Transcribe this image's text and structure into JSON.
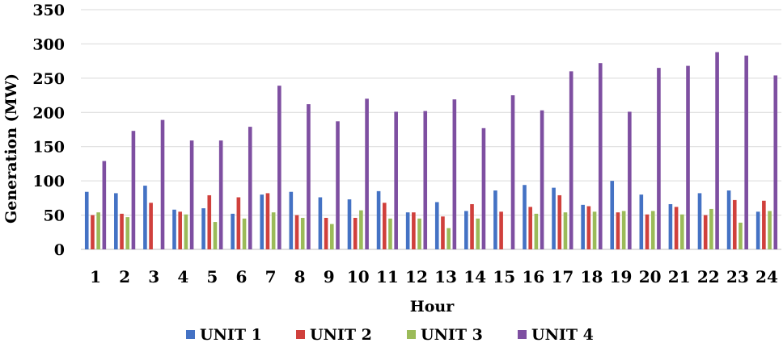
{
  "chart_data": {
    "type": "bar",
    "xlabel": "Hour",
    "ylabel": "Generation (MW)",
    "ylim": [
      0,
      350
    ],
    "yticks": [
      "0",
      "50",
      "100",
      "150",
      "200",
      "250",
      "300",
      "350"
    ],
    "grid": true,
    "legend_position": "bottom",
    "categories": [
      "1",
      "2",
      "3",
      "4",
      "5",
      "6",
      "7",
      "8",
      "9",
      "10",
      "11",
      "12",
      "13",
      "14",
      "15",
      "16",
      "17",
      "18",
      "19",
      "20",
      "21",
      "22",
      "23",
      "24"
    ],
    "series": [
      {
        "name": "UNIT 1",
        "color": "#4472C4",
        "values": [
          84,
          82,
          93,
          58,
          60,
          52,
          80,
          84,
          76,
          73,
          85,
          54,
          69,
          56,
          86,
          94,
          90,
          65,
          100,
          80,
          66,
          82,
          86,
          55
        ]
      },
      {
        "name": "UNIT 2",
        "color": "#D0403C",
        "values": [
          50,
          52,
          68,
          55,
          79,
          76,
          82,
          50,
          46,
          46,
          68,
          54,
          48,
          66,
          55,
          62,
          79,
          63,
          54,
          51,
          62,
          50,
          72,
          71
        ]
      },
      {
        "name": "UNIT 3",
        "color": "#9BBB59",
        "values": [
          54,
          47,
          0,
          51,
          40,
          45,
          54,
          46,
          37,
          57,
          45,
          45,
          31,
          45,
          0,
          52,
          54,
          55,
          56,
          56,
          51,
          59,
          39,
          56
        ]
      },
      {
        "name": "UNIT 4",
        "color": "#7E4FA1",
        "values": [
          129,
          173,
          189,
          159,
          159,
          179,
          239,
          212,
          187,
          220,
          201,
          202,
          219,
          177,
          225,
          203,
          260,
          272,
          201,
          265,
          268,
          288,
          283,
          254
        ]
      }
    ]
  }
}
